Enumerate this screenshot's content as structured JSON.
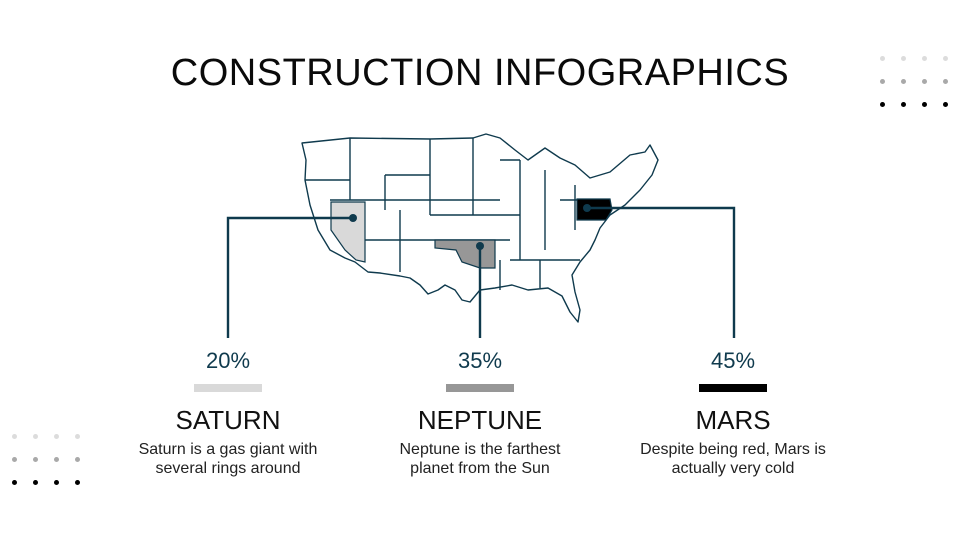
{
  "title": "CONSTRUCTION INFOGRAPHICS",
  "colors": {
    "accent": "#0f3a4d",
    "light": "#d9d9d9",
    "mid": "#979797",
    "dark": "#000000",
    "map_stroke": "#0f3a4d"
  },
  "items": [
    {
      "percent": "20%",
      "name": "SATURN",
      "description_1": "Saturn is a gas giant with",
      "description_2": "several rings around",
      "color": "#d9d9d9"
    },
    {
      "percent": "35%",
      "name": "NEPTUNE",
      "description_1": "Neptune is the farthest",
      "description_2": "planet from the Sun",
      "color": "#979797"
    },
    {
      "percent": "45%",
      "name": "MARS",
      "description_1": "Despite being red, Mars is",
      "description_2": "actually very cold",
      "color": "#000000"
    }
  ]
}
